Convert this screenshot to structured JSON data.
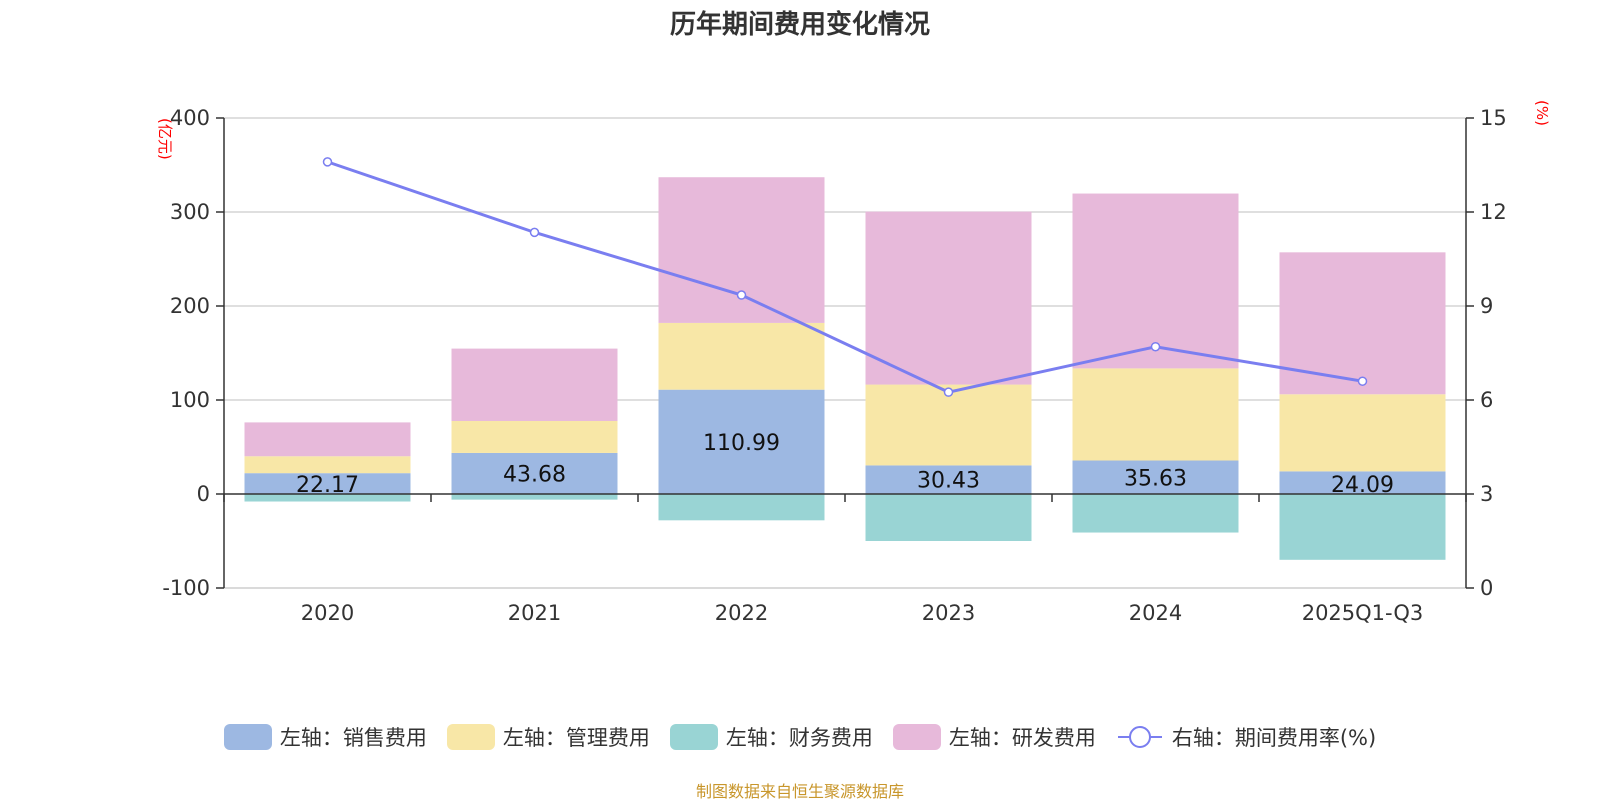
{
  "chart_data": {
    "type": "bar",
    "title": "历年期间费用变化情况",
    "categories": [
      "2020",
      "2021",
      "2022",
      "2023",
      "2024",
      "2025Q1-Q3"
    ],
    "left_axis": {
      "unit": "(亿元)",
      "ylim": [
        -100,
        400
      ],
      "ticks": [
        -100,
        0,
        100,
        200,
        300,
        400
      ]
    },
    "right_axis": {
      "unit": "(%)",
      "ylim": [
        0,
        15
      ],
      "ticks": [
        0,
        3,
        6,
        9,
        12,
        15
      ]
    },
    "series": [
      {
        "name": "左轴：销售费用",
        "color": "#9db8e2",
        "values": [
          22.17,
          43.68,
          110.99,
          30.43,
          35.63,
          24.09
        ],
        "labels": [
          "22.17",
          "43.68",
          "110.99",
          "30.43",
          "35.63",
          "24.09"
        ]
      },
      {
        "name": "左轴：管理费用",
        "color": "#f8e7a7",
        "values": [
          18,
          34,
          71,
          86,
          98,
          82
        ]
      },
      {
        "name": "左轴：财务费用",
        "color": "#99d4d4",
        "values": [
          -8,
          -6,
          -28,
          -50,
          -41,
          -70
        ]
      },
      {
        "name": "左轴：研发费用",
        "color": "#e7b9da",
        "values": [
          36,
          77,
          155,
          184,
          186,
          151
        ]
      }
    ],
    "line": {
      "name": "右轴：期间费用率(%)",
      "color": "#7a7ef0",
      "values": [
        13.6,
        11.35,
        9.35,
        6.25,
        7.7,
        6.6
      ]
    },
    "grid": true,
    "legend_position": "bottom"
  },
  "source": "制图数据来自恒生聚源数据库"
}
